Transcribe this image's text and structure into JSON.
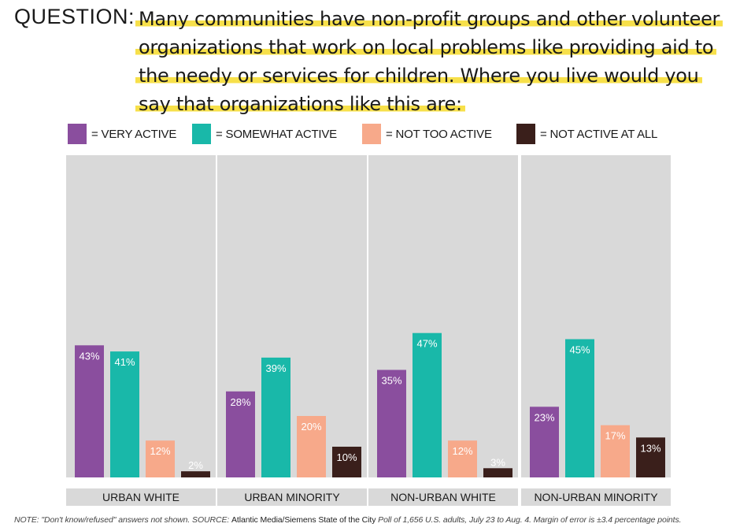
{
  "question": {
    "label": "QUESTION:",
    "lines": [
      "Many communities have non-profit groups and other volunteer",
      "organizations that work on local problems like providing aid to",
      "the needy or services for children. Where you live would you",
      "say that organizations like this are:"
    ]
  },
  "colors": {
    "very_active": "#8a4e9e",
    "somewhat_active": "#19b8a9",
    "not_too_active": "#f7a98a",
    "not_active_at_all": "#3a1f1b",
    "panel_bg": "#d9d9d9",
    "label_bg": "#d9d9d9",
    "highlight": "#f7e04a"
  },
  "legend": [
    {
      "label": "= VERY ACTIVE",
      "color": "#8a4e9e"
    },
    {
      "label": "= SOMEWHAT ACTIVE",
      "color": "#19b8a9"
    },
    {
      "label": "= NOT TOO ACTIVE",
      "color": "#f7a98a"
    },
    {
      "label": "= NOT ACTIVE AT ALL",
      "color": "#3a1f1b"
    }
  ],
  "chart_data": {
    "type": "bar",
    "categories": [
      "URBAN WHITE",
      "URBAN MINORITY",
      "NON-URBAN WHITE",
      "NON-URBAN MINORITY"
    ],
    "series": [
      {
        "name": "VERY ACTIVE",
        "values": [
          43,
          28,
          35,
          23
        ]
      },
      {
        "name": "SOMEWHAT ACTIVE",
        "values": [
          41,
          39,
          47,
          45
        ]
      },
      {
        "name": "NOT TOO ACTIVE",
        "values": [
          12,
          20,
          12,
          17
        ]
      },
      {
        "name": "NOT ACTIVE AT ALL",
        "values": [
          2,
          10,
          3,
          13
        ]
      }
    ],
    "value_suffix": "%",
    "ylim": [
      0,
      100
    ],
    "grid": false,
    "legend_position": "top"
  },
  "note": {
    "prefix": "NOTE: \"Don't know/refused\" answers not shown. SOURCE: ",
    "source": "Atlantic Media/Siemens State of the City",
    "suffix": " Poll of 1,656 U.S. adults, July 23 to Aug. 4. Margin of error is ±3.4 percentage points."
  }
}
